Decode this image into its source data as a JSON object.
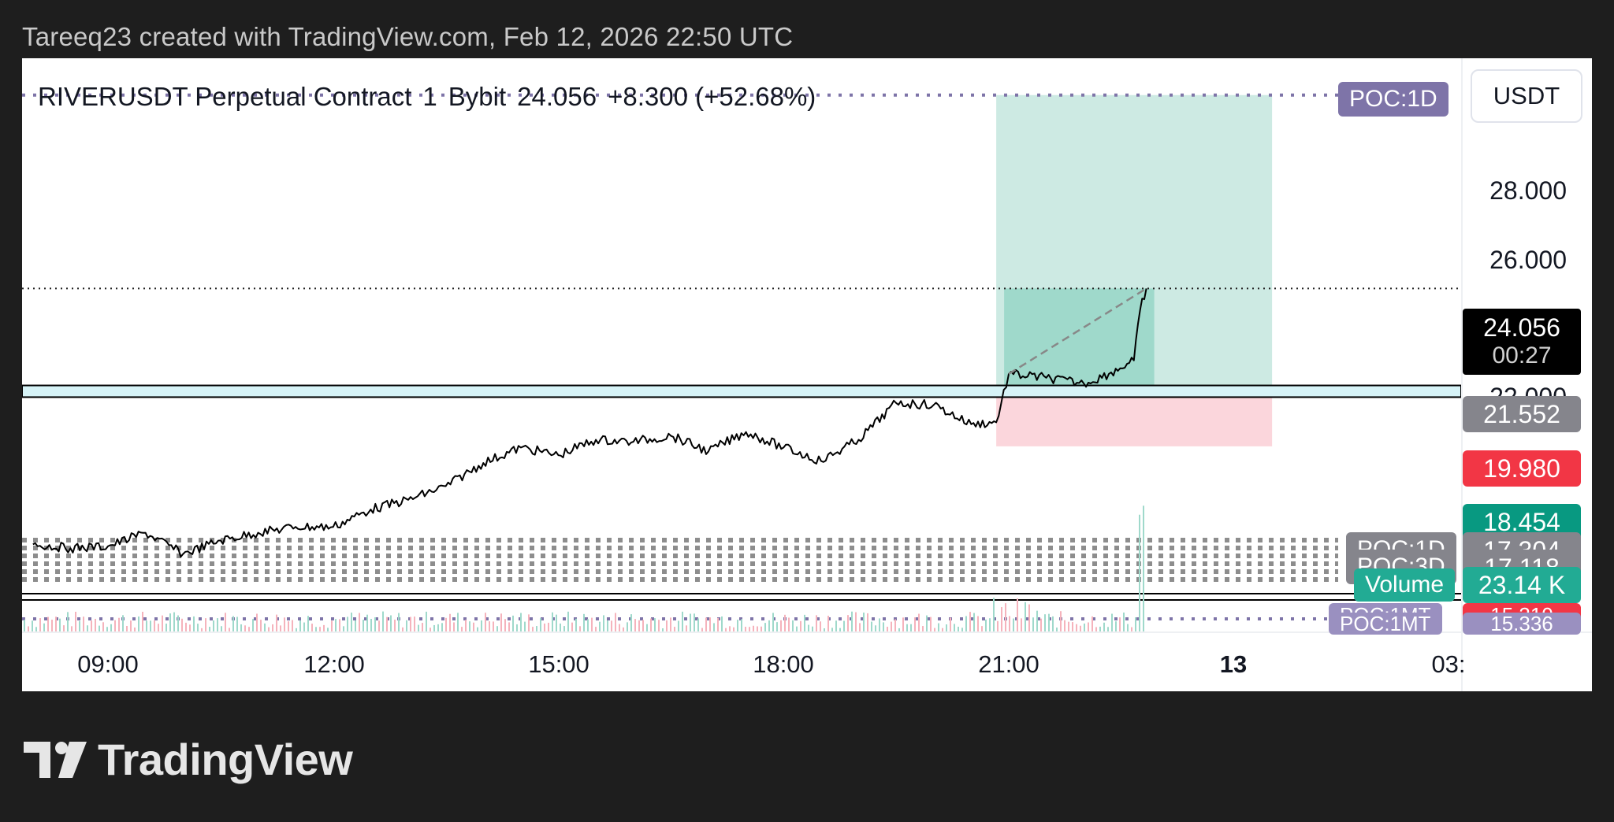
{
  "credit": "Tareeq23 created with TradingView.com, Feb 12, 2026 22:50 UTC",
  "symbol": {
    "name": "RIVERUSDT Perpetual Contract",
    "interval": "1",
    "exchange": "Bybit",
    "price": "24.056",
    "change": "+8.300 (+52.68%)"
  },
  "currency_button": "USDT",
  "price_ticks": [
    "28.000",
    "26.000",
    "22.000"
  ],
  "time_ticks": [
    "09:00",
    "12:00",
    "15:00",
    "18:00",
    "21:00",
    "13",
    "03:"
  ],
  "tags": {
    "last_price": "24.056",
    "countdown": "00:27",
    "entry": "21.552",
    "stop": "19.980",
    "upper": "18.454",
    "poc_1d_price": "17.304",
    "poc_3d_price": "17.118",
    "volume_value": "23.14 K",
    "poc_1mt_a_price": "15.310",
    "poc_1mt_b_price": "15.336"
  },
  "poc_labels": {
    "poc_1d": "POC:1D",
    "poc_1d_lower": "POC:1D",
    "poc_3d": "POC:3D",
    "volume": "Volume",
    "poc_1mt_a": "POC:1MT",
    "poc_1mt_b": "POC:1MT"
  },
  "footer_brand": "TradingView",
  "colors": {
    "background": "#1e1e1e",
    "chart_bg": "#ffffff",
    "price_line": "#000000",
    "profit_zone": "#cdeae3",
    "profit_zone_active": "#9fd9cb",
    "loss_zone": "#fbd6dc",
    "support_band": "#d6f3f7",
    "poc_purple": "#7e74a8",
    "poc_gray": "#85858c",
    "loss_red": "#f23645",
    "teal": "#089981",
    "volume_teal": "#22ab94"
  },
  "chart_data": {
    "type": "line",
    "ylabel": "",
    "xlabel": "",
    "ylim": [
      15.2,
      30.0
    ],
    "x_ticks": [
      "09:00",
      "12:00",
      "15:00",
      "18:00",
      "21:00",
      "13",
      "03:"
    ],
    "y_ticks": [
      22,
      26,
      28
    ],
    "series": [
      {
        "name": "",
        "x": [
          "08:00",
          "08:30",
          "09:00",
          "09:30",
          "10:00",
          "10:30",
          "11:00",
          "11:30",
          "12:00",
          "12:30",
          "13:00",
          "13:30",
          "14:00",
          "14:30",
          "15:00",
          "15:30",
          "16:00",
          "16:30",
          "17:00",
          "17:30",
          "18:00",
          "18:30",
          "19:00",
          "19:30",
          "20:00",
          "20:30",
          "20:50",
          "21:00",
          "21:30",
          "22:00",
          "22:20",
          "22:40",
          "22:45",
          "22:50"
        ],
        "values": [
          17.45,
          17.35,
          17.4,
          17.75,
          17.2,
          17.55,
          17.75,
          17.9,
          17.9,
          18.35,
          18.6,
          18.95,
          19.55,
          19.95,
          19.75,
          20.15,
          20.1,
          20.25,
          19.85,
          20.35,
          19.95,
          19.6,
          20.15,
          21.1,
          21.05,
          20.55,
          20.6,
          21.85,
          21.75,
          21.6,
          21.85,
          22.2,
          23.5,
          24.056
        ]
      }
    ],
    "annotations": {
      "long_position": {
        "entry": 21.552,
        "stop": 19.98,
        "target": 29.05
      },
      "support_band": [
        21.25,
        21.552
      ],
      "last_price": 24.056,
      "poc_1d_line": 29.05
    }
  }
}
